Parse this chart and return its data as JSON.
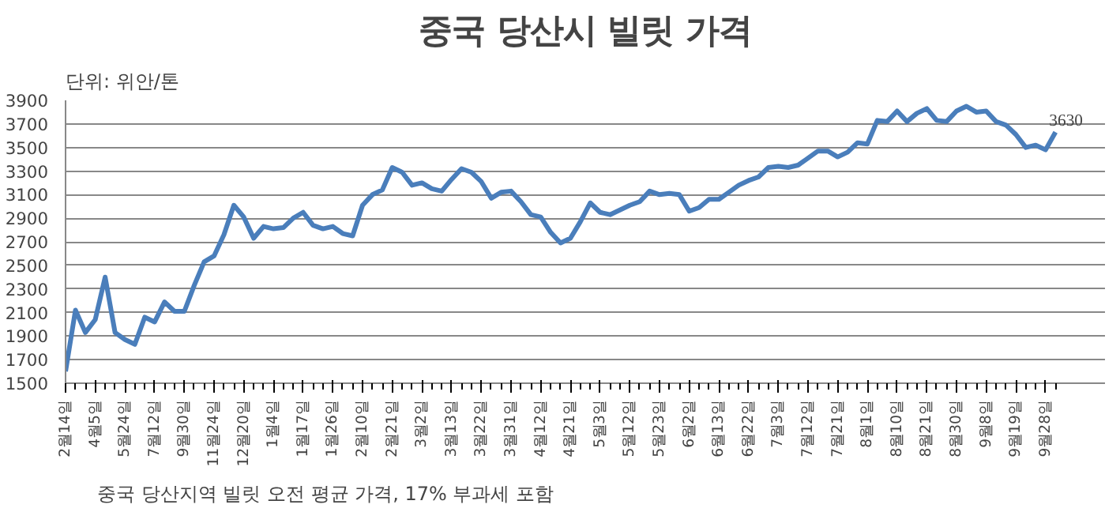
{
  "chart_data": {
    "type": "line",
    "title": "중국 당산시 빌릿 가격",
    "ylabel": "단위: 위안/톤",
    "annotations": [
      "중국 당산지역 빌릿 오전 평균 가격, 17% 부과세 포함"
    ],
    "categories": [
      "2월14일",
      null,
      null,
      "4월5일",
      null,
      null,
      "5월24일",
      null,
      null,
      "7월12일",
      null,
      null,
      "9월30일",
      null,
      null,
      "11월24일",
      null,
      null,
      "12월20일",
      null,
      null,
      "1월4일",
      null,
      null,
      "1월17일",
      null,
      null,
      "1월26일",
      null,
      null,
      "2월10일",
      null,
      null,
      "2월21일",
      null,
      null,
      "3월2일",
      null,
      null,
      "3월13일",
      null,
      null,
      "3월22일",
      null,
      null,
      "3월31일",
      null,
      null,
      "4월12일",
      null,
      null,
      "4월21일",
      null,
      null,
      "5월3일",
      null,
      null,
      "5월12일",
      null,
      null,
      "5월23일",
      null,
      null,
      "6월2일",
      null,
      null,
      "6월13일",
      null,
      null,
      "6월22일",
      null,
      null,
      "7월3일",
      null,
      null,
      "7월12일",
      null,
      null,
      "7월21일",
      null,
      null,
      "8월1일",
      null,
      null,
      "8월10일",
      null,
      null,
      "8월21일",
      null,
      null,
      "8월30일",
      null,
      null,
      "9월8일",
      null,
      null,
      "9월19일",
      null,
      null,
      "9월28일",
      null
    ],
    "series": [
      {
        "color": "#4a7ebb",
        "values": [
          1600,
          2120,
          1930,
          2040,
          2400,
          1930,
          1870,
          1830,
          2060,
          2020,
          2190,
          2110,
          2110,
          2330,
          2530,
          2580,
          2760,
          3010,
          2910,
          2730,
          2830,
          2810,
          2820,
          2900,
          2950,
          2840,
          2810,
          2830,
          2770,
          2750,
          3010,
          3100,
          3140,
          3330,
          3290,
          3180,
          3200,
          3150,
          3130,
          3230,
          3320,
          3290,
          3210,
          3070,
          3120,
          3130,
          3040,
          2930,
          2910,
          2780,
          2690,
          2730,
          2870,
          3030,
          2950,
          2930,
          2970,
          3010,
          3040,
          3130,
          3100,
          3110,
          3100,
          2960,
          2990,
          3060,
          3060,
          3120,
          3180,
          3220,
          3250,
          3330,
          3340,
          3330,
          3350,
          3410,
          3470,
          3470,
          3420,
          3460,
          3540,
          3530,
          3730,
          3720,
          3810,
          3720,
          3790,
          3830,
          3730,
          3720,
          3810,
          3850,
          3800,
          3810,
          3720,
          3690,
          3610,
          3500,
          3520,
          3480,
          3630
        ],
        "value_labels": [
          null,
          null,
          null,
          null,
          null,
          null,
          null,
          null,
          null,
          null,
          null,
          null,
          null,
          null,
          null,
          null,
          null,
          null,
          null,
          null,
          null,
          null,
          null,
          null,
          null,
          null,
          null,
          null,
          null,
          null,
          null,
          null,
          null,
          null,
          null,
          null,
          null,
          null,
          null,
          null,
          null,
          null,
          null,
          null,
          null,
          null,
          null,
          null,
          null,
          null,
          null,
          null,
          null,
          null,
          null,
          null,
          null,
          null,
          null,
          null,
          null,
          null,
          null,
          null,
          null,
          null,
          null,
          null,
          null,
          null,
          null,
          null,
          null,
          null,
          null,
          null,
          null,
          null,
          null,
          null,
          null,
          null,
          null,
          null,
          null,
          null,
          null,
          null,
          null,
          null,
          null,
          null,
          null,
          null,
          null,
          null,
          null,
          null,
          null,
          null,
          "3630"
        ]
      }
    ],
    "ylim": [
      1500,
      3900
    ],
    "yticks": [
      1500,
      1700,
      1900,
      2100,
      2300,
      2500,
      2700,
      2900,
      3100,
      3300,
      3500,
      3700,
      3900
    ],
    "grid": "y",
    "marker": "none",
    "line_style": "solid"
  }
}
